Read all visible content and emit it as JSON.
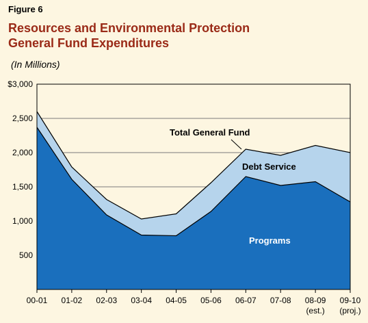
{
  "figure_label": "Figure 6",
  "title_line1": "Resources and Environmental Protection",
  "title_line2": "General Fund Expenditures",
  "units_note": "(In Millions)",
  "chart_data": {
    "type": "area",
    "categories": [
      "00-01",
      "01-02",
      "02-03",
      "03-04",
      "04-05",
      "05-06",
      "06-07",
      "07-08",
      "08-09",
      "09-10"
    ],
    "category_sublabels": [
      "",
      "",
      "",
      "",
      "",
      "",
      "",
      "",
      "(est.)",
      "(proj.)"
    ],
    "series": [
      {
        "name": "Programs",
        "values": [
          2370,
          1610,
          1090,
          795,
          785,
          1140,
          1650,
          1520,
          1575,
          1280
        ],
        "color": "#1a6fbd"
      },
      {
        "name": "Debt Service",
        "values": [
          230,
          180,
          225,
          235,
          320,
          420,
          400,
          440,
          530,
          720
        ],
        "color": "#b6d4ec"
      }
    ],
    "totals_label": "Total General Fund",
    "ylim": [
      0,
      3000
    ],
    "yticks": [
      500,
      1000,
      1500,
      2000,
      2500,
      3000
    ],
    "ytick_labels": [
      "500",
      "1,000",
      "1,500",
      "2,000",
      "2,500",
      "$3,000"
    ],
    "grid": true,
    "stacked": true
  }
}
